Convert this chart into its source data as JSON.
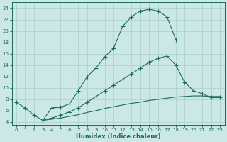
{
  "xlabel": "Humidex (Indice chaleur)",
  "bg_color": "#cce8e4",
  "grid_color": "#aacfca",
  "line_color": "#1a6b60",
  "xlim": [
    -0.5,
    23.5
  ],
  "ylim": [
    3.5,
    25
  ],
  "xticks": [
    0,
    1,
    2,
    3,
    4,
    5,
    6,
    7,
    8,
    9,
    10,
    11,
    12,
    13,
    14,
    15,
    16,
    17,
    18,
    19,
    20,
    21,
    22,
    23
  ],
  "yticks": [
    4,
    6,
    8,
    10,
    12,
    14,
    16,
    18,
    20,
    22,
    24
  ],
  "line1_x": [
    0,
    1,
    2,
    3,
    4,
    5,
    6,
    7,
    8,
    9,
    10,
    11,
    12,
    13,
    14,
    15,
    16,
    17,
    18
  ],
  "line1_y": [
    7.5,
    6.5,
    5.2,
    4.3,
    6.5,
    6.6,
    7.2,
    9.5,
    12.0,
    13.5,
    15.5,
    17.0,
    20.8,
    22.5,
    23.5,
    23.8,
    23.5,
    22.5,
    18.5
  ],
  "line2_x": [
    3,
    4,
    5,
    6,
    7,
    8,
    9,
    10,
    11,
    12,
    13,
    14,
    15,
    16,
    17,
    18,
    19,
    20,
    21,
    22,
    23
  ],
  "line2_y": [
    4.3,
    4.7,
    5.2,
    5.8,
    6.5,
    7.5,
    8.5,
    9.5,
    10.5,
    11.5,
    12.5,
    13.5,
    14.5,
    15.2,
    15.6,
    14.0,
    11.0,
    9.5,
    9.0,
    8.3,
    8.3
  ],
  "line3_x": [
    3,
    4,
    5,
    6,
    7,
    8,
    9,
    10,
    11,
    12,
    13,
    14,
    15,
    16,
    17,
    18,
    19,
    20,
    21,
    22,
    23
  ],
  "line3_y": [
    4.3,
    4.5,
    4.7,
    5.0,
    5.3,
    5.7,
    6.0,
    6.4,
    6.7,
    7.0,
    7.3,
    7.5,
    7.8,
    8.0,
    8.2,
    8.4,
    8.5,
    8.6,
    8.6,
    8.5,
    8.5
  ]
}
